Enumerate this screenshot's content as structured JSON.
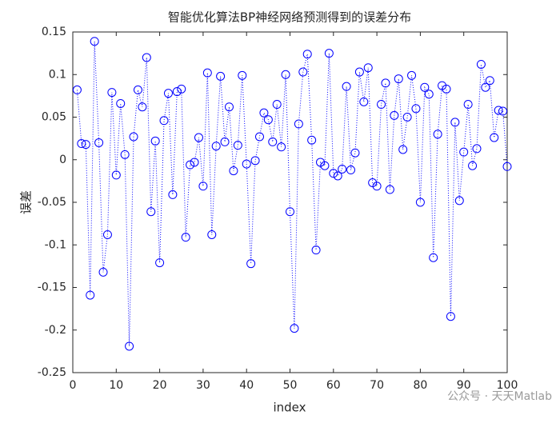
{
  "chart_data": {
    "type": "line",
    "title": "智能优化算法BP神经网络预测得到的误差分布",
    "x_label": "index",
    "y_label": "误差",
    "watermark": "公众号 · 天天Matlab",
    "x": [
      1,
      2,
      3,
      4,
      5,
      6,
      7,
      8,
      9,
      10,
      11,
      12,
      13,
      14,
      15,
      16,
      17,
      18,
      19,
      20,
      21,
      22,
      23,
      24,
      25,
      26,
      27,
      28,
      29,
      30,
      31,
      32,
      33,
      34,
      35,
      36,
      37,
      38,
      39,
      40,
      41,
      42,
      43,
      44,
      45,
      46,
      47,
      48,
      49,
      50,
      51,
      52,
      53,
      54,
      55,
      56,
      57,
      58,
      59,
      60,
      61,
      62,
      63,
      64,
      65,
      66,
      67,
      68,
      69,
      70,
      71,
      72,
      73,
      74,
      75,
      76,
      77,
      78,
      79,
      80,
      81,
      82,
      83,
      84,
      85,
      86,
      87,
      88,
      89,
      90,
      91,
      92,
      93,
      94,
      95,
      96,
      97,
      98,
      99,
      100
    ],
    "series": [
      {
        "color": "#0000ff",
        "values": [
          0.082,
          0.019,
          0.018,
          -0.159,
          0.139,
          0.02,
          -0.132,
          -0.088,
          0.079,
          -0.018,
          0.066,
          0.006,
          -0.219,
          0.027,
          0.082,
          0.062,
          0.12,
          -0.061,
          0.022,
          -0.121,
          0.046,
          0.078,
          -0.041,
          0.08,
          0.083,
          -0.091,
          -0.006,
          -0.003,
          0.026,
          -0.031,
          0.102,
          -0.088,
          0.016,
          0.098,
          0.021,
          0.062,
          -0.013,
          0.017,
          0.099,
          -0.005,
          -0.122,
          -0.001,
          0.027,
          0.055,
          0.047,
          0.021,
          0.065,
          0.015,
          0.1,
          -0.061,
          -0.198,
          0.042,
          0.103,
          0.124,
          0.023,
          -0.106,
          -0.003,
          -0.007,
          0.125,
          -0.016,
          -0.019,
          -0.011,
          0.086,
          -0.012,
          0.008,
          0.103,
          0.068,
          0.108,
          -0.027,
          -0.031,
          0.065,
          0.09,
          -0.035,
          0.052,
          0.095,
          0.012,
          0.05,
          0.099,
          0.06,
          -0.05,
          0.085,
          0.077,
          -0.115,
          0.03,
          0.087,
          0.083,
          -0.184,
          0.044,
          -0.048,
          0.009,
          0.065,
          -0.007,
          0.013,
          0.112,
          0.085,
          0.093,
          0.026,
          0.058,
          0.057,
          -0.008
        ]
      }
    ],
    "xlim": [
      0,
      100
    ],
    "xticks": [
      0,
      10,
      20,
      30,
      40,
      50,
      60,
      70,
      80,
      90,
      100
    ],
    "ylim": [
      -0.25,
      0.15
    ],
    "yticks": [
      -0.25,
      -0.2,
      -0.15,
      -0.1,
      -0.05,
      0,
      0.05,
      0.1,
      0.15
    ]
  }
}
